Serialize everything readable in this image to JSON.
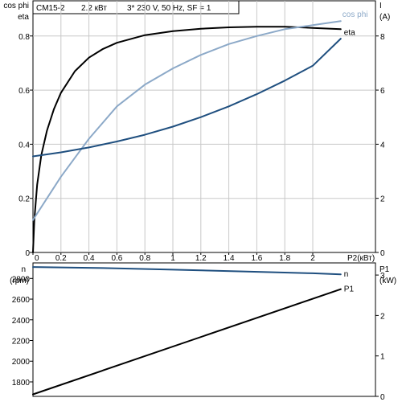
{
  "header": {
    "model": "CM15-2",
    "power": "2.2 кВт",
    "supply": "3* 230 V, 50 Hz, SF = 1"
  },
  "chart_data": [
    {
      "type": "line",
      "panel": "top",
      "x_axis_label": "P2(кВт)",
      "x_ticks": [
        "0",
        "0.2",
        "0.4",
        "0.6",
        "0.8",
        "1",
        "1.2",
        "1.4",
        "1.6",
        "1.8",
        "2"
      ],
      "xlim": [
        0,
        2.2
      ],
      "left_axis": {
        "labels": [
          "cos phi",
          "eta"
        ],
        "ticks": [
          "0",
          "0.2",
          "0.4",
          "0.6",
          "0.8"
        ],
        "ylim": [
          0,
          0.93
        ]
      },
      "right_axis": {
        "labels": [
          "I",
          "(A)"
        ],
        "ticks": [
          "0",
          "2",
          "4",
          "6",
          "8"
        ],
        "ylim": [
          0,
          9.3
        ]
      },
      "grid": true,
      "series": [
        {
          "name": "eta",
          "axis": "left",
          "color": "#000000",
          "points": [
            [
              0.0,
              0.0
            ],
            [
              0.01,
              0.12
            ],
            [
              0.03,
              0.25
            ],
            [
              0.06,
              0.36
            ],
            [
              0.1,
              0.45
            ],
            [
              0.15,
              0.53
            ],
            [
              0.2,
              0.59
            ],
            [
              0.3,
              0.67
            ],
            [
              0.4,
              0.72
            ],
            [
              0.5,
              0.752
            ],
            [
              0.6,
              0.775
            ],
            [
              0.8,
              0.803
            ],
            [
              1.0,
              0.818
            ],
            [
              1.2,
              0.827
            ],
            [
              1.4,
              0.832
            ],
            [
              1.6,
              0.834
            ],
            [
              1.8,
              0.834
            ],
            [
              2.0,
              0.83
            ],
            [
              2.2,
              0.825
            ]
          ]
        },
        {
          "name": "cos phi",
          "axis": "left",
          "color": "#8ca9c8",
          "points": [
            [
              0.0,
              0.12
            ],
            [
              0.1,
              0.2
            ],
            [
              0.2,
              0.28
            ],
            [
              0.3,
              0.35
            ],
            [
              0.4,
              0.42
            ],
            [
              0.5,
              0.48
            ],
            [
              0.6,
              0.54
            ],
            [
              0.8,
              0.62
            ],
            [
              1.0,
              0.68
            ],
            [
              1.2,
              0.73
            ],
            [
              1.4,
              0.77
            ],
            [
              1.6,
              0.8
            ],
            [
              1.8,
              0.825
            ],
            [
              2.0,
              0.84
            ],
            [
              2.2,
              0.855
            ]
          ]
        },
        {
          "name": "I",
          "axis": "right",
          "color": "#1f4f7f",
          "points": [
            [
              0.0,
              3.55
            ],
            [
              0.2,
              3.7
            ],
            [
              0.4,
              3.88
            ],
            [
              0.6,
              4.1
            ],
            [
              0.8,
              4.35
            ],
            [
              1.0,
              4.65
            ],
            [
              1.2,
              5.0
            ],
            [
              1.4,
              5.4
            ],
            [
              1.6,
              5.85
            ],
            [
              1.8,
              6.35
            ],
            [
              2.0,
              6.9
            ],
            [
              2.2,
              7.9
            ]
          ]
        }
      ]
    },
    {
      "type": "line",
      "panel": "bottom",
      "xlim": [
        0,
        2.2
      ],
      "left_axis": {
        "labels": [
          "n",
          "(rpm)"
        ],
        "ticks": [
          "1800",
          "2000",
          "2200",
          "2400",
          "2600",
          "2800"
        ],
        "ylim": [
          1660,
          2950
        ]
      },
      "right_axis": {
        "labels": [
          "P1",
          "(kW)"
        ],
        "ticks": [
          "0",
          "1",
          "2",
          "3"
        ],
        "ylim": [
          0,
          3.3
        ]
      },
      "grid": false,
      "series": [
        {
          "name": "n",
          "axis": "left",
          "color": "#1f4f7f",
          "points": [
            [
              0.0,
              2910
            ],
            [
              0.5,
              2900
            ],
            [
              1.0,
              2885
            ],
            [
              1.5,
              2868
            ],
            [
              2.0,
              2850
            ],
            [
              2.2,
              2840
            ]
          ]
        },
        {
          "name": "P1",
          "axis": "right",
          "color": "#000000",
          "points": [
            [
              0.0,
              0.05
            ],
            [
              2.2,
              2.65
            ]
          ]
        }
      ]
    }
  ]
}
